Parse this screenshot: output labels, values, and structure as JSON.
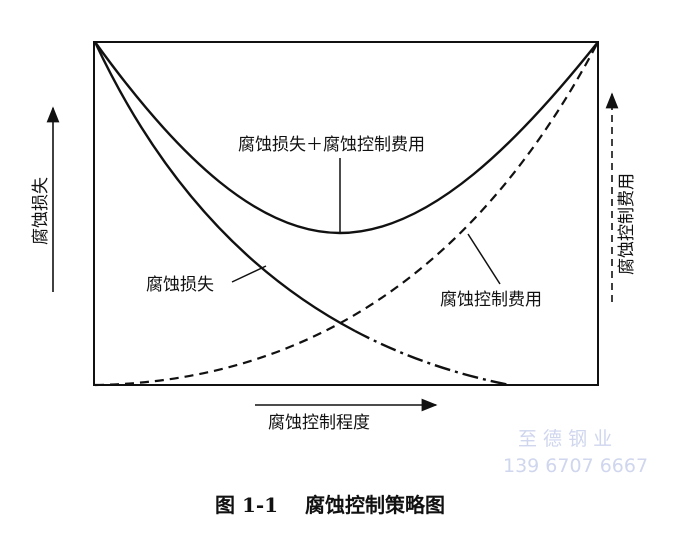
{
  "labels": {
    "total_curve": "腐蚀损失＋腐蚀控制费用",
    "loss_curve": "腐蚀损失",
    "control_cost_curve": "腐蚀控制费用",
    "y_left_axis": "腐蚀损失",
    "y_right_axis": "腐蚀控制费用",
    "x_axis": "腐蚀控制程度"
  },
  "caption": {
    "number": "图 1-1",
    "title": "腐蚀控制策略图"
  },
  "watermark": {
    "company": "至 德 钢 业",
    "phone": "139 6707 6667"
  },
  "colors": {
    "ink": "#111111",
    "watermark": "#cfd6ee"
  }
}
